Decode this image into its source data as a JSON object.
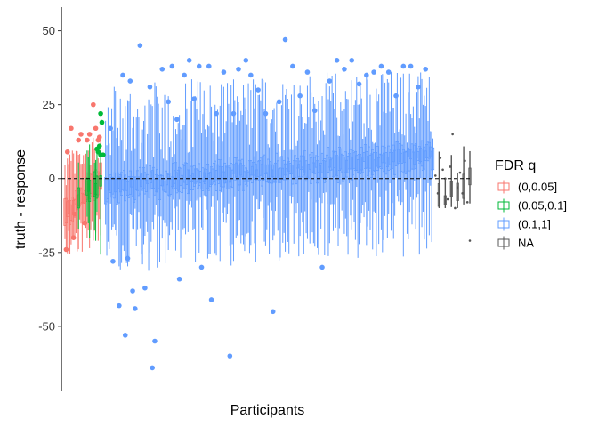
{
  "chart_data": {
    "type": "scatter",
    "xlabel": "Participants",
    "ylabel": "truth - response",
    "ylim": [
      -72,
      58
    ],
    "yticks": [
      50,
      25,
      0,
      -25,
      -50
    ],
    "ytick_labels": [
      "50",
      "25",
      "0",
      "-25",
      "-50"
    ],
    "reference_line": {
      "y": 0,
      "style": "dashed",
      "color": "#000000"
    },
    "grid": false,
    "legend": {
      "title": "FDR q",
      "position": "right",
      "entries": [
        {
          "label": "(0,0.05]",
          "color": "#F8766D"
        },
        {
          "label": "(0.05,0.1]",
          "color": "#00BA38"
        },
        {
          "label": "(0.1,1]",
          "color": "#619CFF"
        },
        {
          "label": "NA",
          "color": "#555555"
        }
      ]
    },
    "x_ordering": "participants sorted by median (truth - response); approximately 330 participants shown as vertical ranges with outlier points",
    "groups": [
      {
        "name": "(0,0.05]",
        "color": "#F8766D",
        "x_range": [
          1,
          30
        ],
        "median_range": [
          -12,
          0
        ],
        "range_extent": [
          -30,
          17
        ],
        "outliers": [
          [
            3,
            9
          ],
          [
            6,
            17
          ],
          [
            9,
            -12
          ],
          [
            12,
            13
          ],
          [
            14,
            15
          ],
          [
            17,
            -15
          ],
          [
            19,
            13
          ],
          [
            21,
            15
          ],
          [
            24,
            25
          ],
          [
            26,
            17
          ],
          [
            28,
            13
          ],
          [
            29,
            14
          ],
          [
            2,
            -24
          ],
          [
            8,
            -20
          ]
        ]
      },
      {
        "name": "(0.05,0.1]",
        "color": "#00BA38",
        "x_range": [
          10,
          33
        ],
        "median_range": [
          -5,
          0
        ],
        "range_extent": [
          -38,
          14
        ],
        "outliers": [
          [
            27,
            10
          ],
          [
            28,
            9
          ],
          [
            29,
            11
          ],
          [
            30,
            8
          ],
          [
            30,
            22
          ],
          [
            31,
            19
          ],
          [
            32,
            8
          ]
        ]
      },
      {
        "name": "(0.1,1]",
        "color": "#619CFF",
        "x_range": [
          34,
          300
        ],
        "median_range": [
          -3,
          8
        ],
        "range_extent": [
          -44,
          51
        ],
        "outliers": [
          [
            38,
            17
          ],
          [
            40,
            -28
          ],
          [
            45,
            -43
          ],
          [
            48,
            35
          ],
          [
            50,
            -53
          ],
          [
            52,
            -27
          ],
          [
            54,
            33
          ],
          [
            56,
            -38
          ],
          [
            58,
            -44
          ],
          [
            62,
            45
          ],
          [
            66,
            -37
          ],
          [
            70,
            31
          ],
          [
            72,
            -64
          ],
          [
            74,
            -55
          ],
          [
            80,
            37
          ],
          [
            85,
            26
          ],
          [
            88,
            38
          ],
          [
            92,
            20
          ],
          [
            94,
            -34
          ],
          [
            98,
            35
          ],
          [
            102,
            40
          ],
          [
            106,
            27
          ],
          [
            110,
            38
          ],
          [
            112,
            -30
          ],
          [
            118,
            38
          ],
          [
            120,
            -41
          ],
          [
            124,
            22
          ],
          [
            130,
            36
          ],
          [
            135,
            -60
          ],
          [
            138,
            22
          ],
          [
            142,
            37
          ],
          [
            148,
            40
          ],
          [
            152,
            35
          ],
          [
            158,
            30
          ],
          [
            164,
            22
          ],
          [
            170,
            -45
          ],
          [
            175,
            26
          ],
          [
            180,
            47
          ],
          [
            186,
            38
          ],
          [
            192,
            28
          ],
          [
            198,
            36
          ],
          [
            204,
            23
          ],
          [
            210,
            -30
          ],
          [
            216,
            33
          ],
          [
            222,
            40
          ],
          [
            228,
            37
          ],
          [
            234,
            40
          ],
          [
            240,
            32
          ],
          [
            246,
            35
          ],
          [
            252,
            36
          ],
          [
            258,
            38
          ],
          [
            264,
            36
          ],
          [
            270,
            28
          ],
          [
            276,
            38
          ],
          [
            282,
            38
          ],
          [
            288,
            31
          ],
          [
            294,
            37
          ]
        ]
      },
      {
        "name": "NA",
        "color": "#555555",
        "x_range": [
          301,
          330
        ],
        "median_range": [
          -8,
          0
        ],
        "range_extent": [
          -10,
          12
        ],
        "outliers": [
          [
            302,
            1
          ],
          [
            304,
            -5
          ],
          [
            306,
            7
          ],
          [
            308,
            3
          ],
          [
            310,
            0
          ],
          [
            312,
            -7
          ],
          [
            314,
            4
          ],
          [
            316,
            15
          ],
          [
            318,
            -10
          ],
          [
            320,
            -3
          ],
          [
            322,
            2
          ],
          [
            324,
            -5
          ],
          [
            326,
            6
          ],
          [
            328,
            -8
          ],
          [
            330,
            -21
          ]
        ]
      }
    ]
  }
}
